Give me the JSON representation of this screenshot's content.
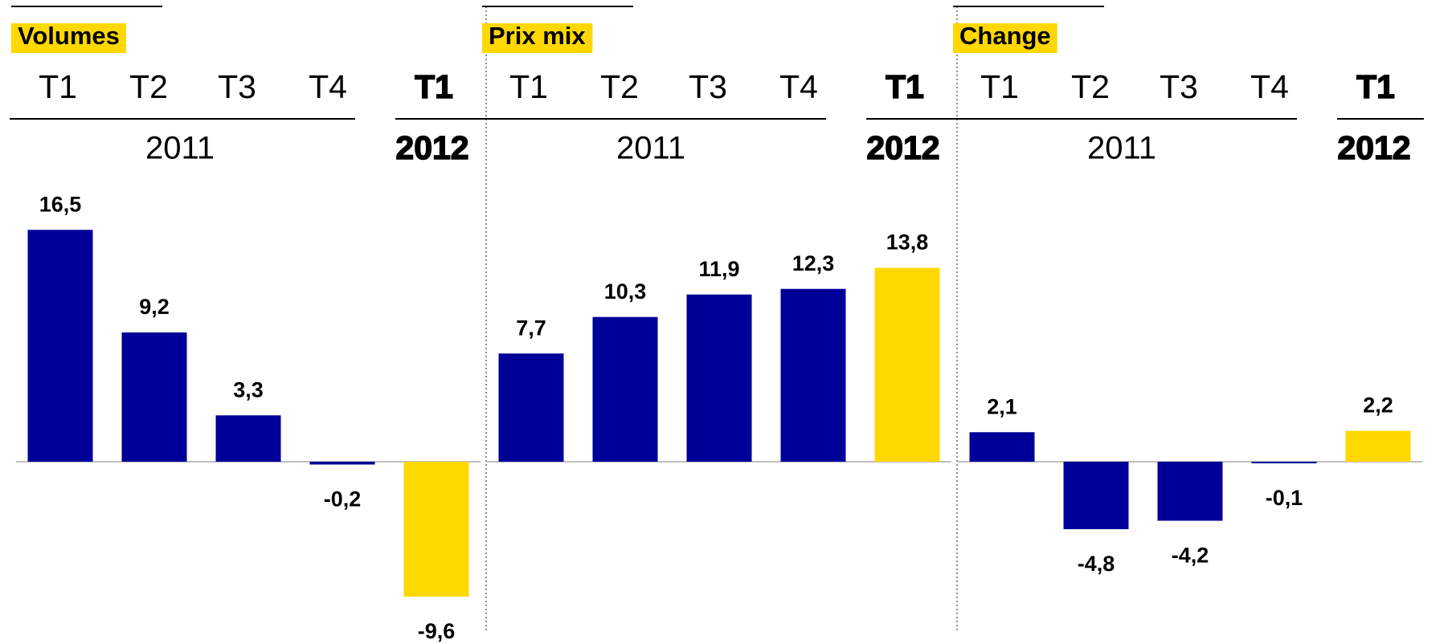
{
  "chart_data": [
    {
      "type": "bar",
      "title": "Volumes",
      "categories": [
        "T1",
        "T2",
        "T3",
        "T4",
        "T1"
      ],
      "group_labels": [
        "2011",
        "2012"
      ],
      "values": [
        16.5,
        9.2,
        3.3,
        -0.2,
        -9.6
      ],
      "value_labels": [
        "16,5",
        "9,2",
        "3,3",
        "-0,2",
        "-9,6"
      ],
      "colors": [
        "#000099",
        "#000099",
        "#000099",
        "#000099",
        "#ffd800"
      ]
    },
    {
      "type": "bar",
      "title": "Prix mix",
      "categories": [
        "T1",
        "T2",
        "T3",
        "T4",
        "T1"
      ],
      "group_labels": [
        "2011",
        "2012"
      ],
      "values": [
        7.7,
        10.3,
        11.9,
        12.3,
        13.8
      ],
      "value_labels": [
        "7,7",
        "10,3",
        "11,9",
        "12,3",
        "13,8"
      ],
      "colors": [
        "#000099",
        "#000099",
        "#000099",
        "#000099",
        "#ffd800"
      ]
    },
    {
      "type": "bar",
      "title": "Change",
      "categories": [
        "T1",
        "T2",
        "T3",
        "T4",
        "T1"
      ],
      "group_labels": [
        "2011",
        "2012"
      ],
      "values": [
        2.1,
        -4.8,
        -4.2,
        -0.1,
        2.2
      ],
      "value_labels": [
        "2,1",
        "-4,8",
        "-4,2",
        "-0,1",
        "2,2"
      ],
      "colors": [
        "#000099",
        "#000099",
        "#000099",
        "#000099",
        "#ffd800"
      ]
    }
  ]
}
